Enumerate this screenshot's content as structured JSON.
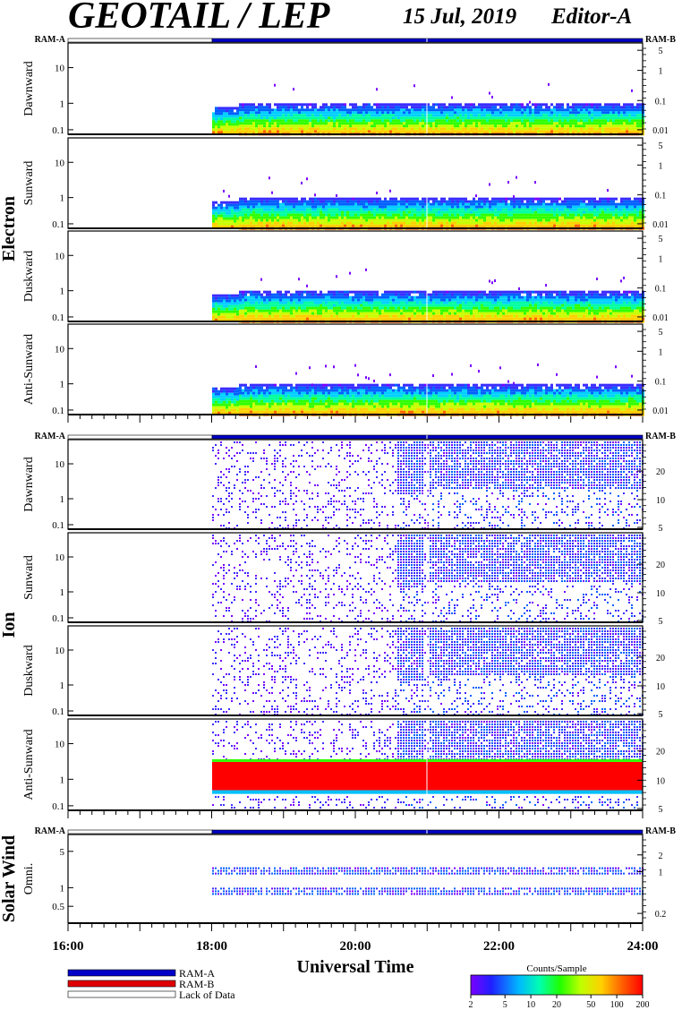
{
  "header": {
    "title": "GEOTAIL / LEP",
    "date": "15 Jul, 2019",
    "editor": "Editor-A"
  },
  "colors": {
    "ram_a": "#0000c8",
    "ram_b": "#e00000",
    "lack": "#ffffff",
    "colorscale": [
      "#7a00ff",
      "#3a2cff",
      "#0060ff",
      "#00d0ff",
      "#00ffa0",
      "#30ff00",
      "#c8ff00",
      "#ffd000",
      "#ff6000",
      "#ff0000"
    ]
  },
  "legend": {
    "ram_a": "RAM-A",
    "ram_b": "RAM-B",
    "lack": "Lack of Data",
    "colorbar_title": "Counts/Sample",
    "colorbar_ticks": [
      "2",
      "5",
      "10",
      "20",
      "50",
      "100",
      "200"
    ]
  },
  "xaxis": {
    "title": "Universal Time",
    "ticks": [
      "16:00",
      "18:00",
      "20:00",
      "22:00",
      "24:00"
    ]
  },
  "groups": [
    {
      "label": "Electron",
      "bar_left": "RAM-A",
      "bar_right": "RAM-B"
    },
    {
      "label": "Ion",
      "bar_left": "RAM-A",
      "bar_right": "RAM-B"
    },
    {
      "label": "Solar Wind",
      "bar_left": "RAM-A",
      "bar_right": "RAM-B"
    }
  ],
  "panels": [
    {
      "label": "Dawnward",
      "left_ticks": [
        "10",
        "1",
        "0.1"
      ],
      "right_ticks": [
        "5",
        "1",
        "0.1",
        "0.01"
      ]
    },
    {
      "label": "Sunward",
      "left_ticks": [
        "10",
        "1",
        "0.1"
      ],
      "right_ticks": [
        "5",
        "1",
        "0.1",
        "0.01"
      ]
    },
    {
      "label": "Duskward",
      "left_ticks": [
        "10",
        "1",
        "0.1"
      ],
      "right_ticks": [
        "5",
        "1",
        "0.1",
        "0.01"
      ]
    },
    {
      "label": "Anti-Sunward",
      "left_ticks": [
        "10",
        "1",
        "0.1"
      ],
      "right_ticks": [
        "5",
        "1",
        "0.1",
        "0.01"
      ]
    },
    {
      "label": "Dawnward",
      "left_ticks": [
        "10",
        "1",
        "0.1"
      ],
      "right_ticks": [
        "20",
        "10",
        "5"
      ]
    },
    {
      "label": "Sunward",
      "left_ticks": [
        "10",
        "1",
        "0.1"
      ],
      "right_ticks": [
        "20",
        "10",
        "5"
      ]
    },
    {
      "label": "Duskward",
      "left_ticks": [
        "10",
        "1",
        "0.1"
      ],
      "right_ticks": [
        "20",
        "10",
        "5"
      ]
    },
    {
      "label": "Anti-Sunward",
      "left_ticks": [
        "10",
        "1",
        "0.1"
      ],
      "right_ticks": [
        "20",
        "10",
        "5"
      ]
    },
    {
      "label": "Omni.",
      "left_ticks": [
        "5",
        "1",
        "0.5"
      ],
      "right_ticks": [
        "2",
        "1",
        "0.2"
      ]
    }
  ],
  "chart_data": {
    "type": "heatmap",
    "x_range": [
      "16:00",
      "24:00"
    ],
    "data_start": "18:00",
    "mode_bar": [
      {
        "from": "16:00",
        "to": "18:00",
        "mode": "Lack of Data"
      },
      {
        "from": "18:00",
        "to": "24:00",
        "mode": "RAM-A"
      }
    ],
    "colorscale_range": [
      2,
      200
    ],
    "colorscale_log": true,
    "yscale": "log"
  }
}
